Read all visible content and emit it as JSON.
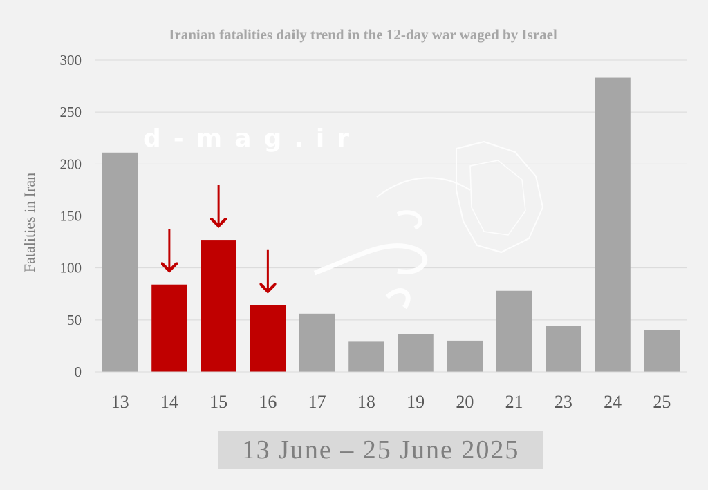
{
  "chart_data": {
    "type": "bar",
    "title": "Iranian fatalities daily trend in the 12-day war waged by Israel",
    "xlabel": "",
    "ylabel": "Fatalities in Iran",
    "categories": [
      "13",
      "14",
      "15",
      "16",
      "17",
      "18",
      "19",
      "20",
      "21",
      "23",
      "24",
      "25"
    ],
    "values": [
      211,
      84,
      127,
      64,
      56,
      29,
      36,
      30,
      78,
      44,
      283,
      40
    ],
    "highlighted": [
      false,
      true,
      true,
      true,
      false,
      false,
      false,
      false,
      false,
      false,
      false,
      false
    ],
    "arrows_on": [
      "14",
      "15",
      "16"
    ],
    "ylim": [
      0,
      300
    ],
    "yticks": [
      0,
      50,
      100,
      150,
      200,
      250,
      300
    ],
    "grid": true,
    "colors": {
      "bar": "#a6a6a6",
      "highlight": "#c00000",
      "arrow": "#c00000",
      "gridline": "#d9d9d9"
    }
  },
  "footer": {
    "date_range": "13 June – 25 June 2025"
  },
  "watermark": {
    "text": "d-mag.ir"
  }
}
